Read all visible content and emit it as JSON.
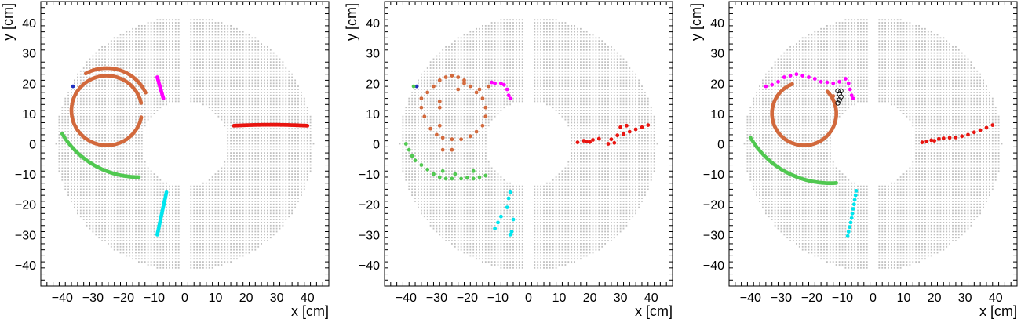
{
  "chart_data": [
    {
      "type": "scatter",
      "panel": "left",
      "xlabel": "x [cm]",
      "ylabel": "y [cm]",
      "xlim": [
        -47,
        47
      ],
      "ylim": [
        -47,
        47
      ],
      "xticks": [
        -40,
        -30,
        -20,
        -10,
        0,
        10,
        20,
        30,
        40
      ],
      "yticks": [
        -40,
        -30,
        -20,
        -10,
        0,
        10,
        20,
        30,
        40
      ],
      "tick_labels_x": [
        "−40",
        "−30",
        "−20",
        "−10",
        "0",
        "10",
        "20",
        "30",
        "40"
      ],
      "tick_labels_y": [
        "−40",
        "−30",
        "−20",
        "−10",
        "0",
        "10",
        "20",
        "30",
        "40"
      ],
      "grid": false,
      "background": {
        "description": "detector straw cells",
        "color": "#bfbfbf",
        "inner_radius": 14,
        "outer_radius": 42,
        "x_gap": 2
      },
      "series": [
        {
          "color": "#e8140f",
          "track": {
            "kind": "arc",
            "cx": 28,
            "cy": -220,
            "r": 226.3,
            "start_x": 16,
            "end_x": 40
          }
        },
        {
          "color": "#d2693c",
          "track": {
            "kind": "circle",
            "cx": -25.5,
            "cy": 11,
            "r": 11.5,
            "start_deg": 0,
            "end_deg": 360,
            "gap_deg": [
              350,
              10
            ]
          }
        },
        {
          "color": "#d2693c",
          "track": {
            "kind": "arc_deg",
            "cx": -25.5,
            "cy": 11,
            "r": 14,
            "start_deg": 25,
            "end_deg": 120
          }
        },
        {
          "color": "#50c850",
          "track": {
            "kind": "arc",
            "cx": -15,
            "cy": 18,
            "r": 29.0,
            "start_x": -40,
            "end_x": -15
          }
        },
        {
          "color": "#ff00ff",
          "track": {
            "kind": "line",
            "x1": -9,
            "y1": 22,
            "x2": -7,
            "y2": 15
          }
        },
        {
          "color": "#00e5ee",
          "track": {
            "kind": "line",
            "x1": -6,
            "y1": -16,
            "x2": -9,
            "y2": -30
          }
        },
        {
          "color": "#2030c0",
          "points": [
            [
              -36.5,
              19
            ]
          ]
        }
      ]
    },
    {
      "type": "scatter",
      "panel": "middle",
      "xlabel": "x [cm]",
      "ylabel": "y [cm]",
      "xlim": [
        -47,
        47
      ],
      "ylim": [
        -47,
        47
      ],
      "xticks": [
        -40,
        -30,
        -20,
        -10,
        0,
        10,
        20,
        30,
        40
      ],
      "yticks": [
        -40,
        -30,
        -20,
        -10,
        0,
        10,
        20,
        30,
        40
      ],
      "tick_labels_x": [
        "−40",
        "−30",
        "−20",
        "−10",
        "0",
        "10",
        "20",
        "30",
        "40"
      ],
      "tick_labels_y": [
        "−40",
        "−30",
        "−20",
        "−10",
        "0",
        "10",
        "20",
        "30",
        "40"
      ],
      "grid": false,
      "background": {
        "description": "detector straw cells",
        "color": "#bfbfbf",
        "inner_radius": 14,
        "outer_radius": 42,
        "x_gap": 2
      },
      "series": [
        {
          "color": "#e8140f",
          "points": [
            [
              16,
              0.5
            ],
            [
              18,
              1
            ],
            [
              19,
              0.8
            ],
            [
              21,
              1.3
            ],
            [
              23,
              1.7
            ],
            [
              27,
              1.5
            ],
            [
              29,
              2.8
            ],
            [
              31,
              3.2
            ],
            [
              33,
              4
            ],
            [
              35,
              4.8
            ],
            [
              37,
              5.5
            ],
            [
              39,
              6.2
            ],
            [
              20,
              0.6
            ],
            [
              26,
              0
            ],
            [
              28,
              0.3
            ],
            [
              30,
              5.5
            ],
            [
              32,
              6
            ]
          ]
        },
        {
          "color": "#d2693c",
          "points": [
            [
              -33,
              17
            ],
            [
              -31,
              19
            ],
            [
              -29,
              21
            ],
            [
              -27,
              22
            ],
            [
              -25,
              22.5
            ],
            [
              -23,
              22
            ],
            [
              -21,
              21
            ],
            [
              -19,
              19
            ],
            [
              -17,
              17
            ],
            [
              -15,
              15
            ],
            [
              -14,
              12
            ],
            [
              -14,
              9
            ],
            [
              -15,
              6
            ],
            [
              -17,
              4
            ],
            [
              -19,
              2.5
            ],
            [
              -22,
              1.5
            ],
            [
              -25,
              1.5
            ],
            [
              -28,
              2
            ],
            [
              -30,
              3
            ],
            [
              -32,
              5
            ],
            [
              -34,
              9
            ],
            [
              -35,
              12
            ],
            [
              -35,
              15
            ],
            [
              -29,
              12
            ],
            [
              -29,
              14
            ],
            [
              -29,
              6
            ],
            [
              -28,
              -2
            ],
            [
              -25,
              -2
            ],
            [
              -23,
              18
            ],
            [
              -21,
              20
            ],
            [
              -16,
              18
            ],
            [
              -13,
              19
            ]
          ]
        },
        {
          "color": "#50c850",
          "points": [
            [
              -40,
              0
            ],
            [
              -39,
              -2
            ],
            [
              -38,
              -4
            ],
            [
              -37,
              -5.5
            ],
            [
              -35,
              -7
            ],
            [
              -33,
              -8.5
            ],
            [
              -31,
              -10
            ],
            [
              -29,
              -11
            ],
            [
              -27,
              -11.5
            ],
            [
              -25,
              -11.5
            ],
            [
              -22,
              -11.5
            ],
            [
              -20,
              -11.2
            ],
            [
              -18,
              -11.5
            ],
            [
              -16,
              -11
            ],
            [
              -14,
              -10.5
            ],
            [
              -28,
              -9
            ],
            [
              -24,
              -10
            ],
            [
              -18,
              -9
            ]
          ]
        },
        {
          "color": "#ff00ff",
          "points": [
            [
              -9,
              20
            ],
            [
              -8,
              19.5
            ],
            [
              -7,
              18
            ],
            [
              -6.5,
              16
            ],
            [
              -6,
              15
            ],
            [
              -11,
              20
            ],
            [
              -12,
              20.3
            ]
          ]
        },
        {
          "color": "#00e5ee",
          "points": [
            [
              -6,
              -16
            ],
            [
              -6.5,
              -18
            ],
            [
              -7,
              -21
            ],
            [
              -9,
              -24
            ],
            [
              -10,
              -26
            ],
            [
              -11,
              -28
            ],
            [
              -5,
              -25
            ],
            [
              -5.5,
              -29
            ],
            [
              -6,
              -30
            ]
          ]
        },
        {
          "color": "#2030c0",
          "points": [
            [
              -36.5,
              19
            ]
          ]
        },
        {
          "color": "#50c850",
          "points": [
            [
              -37.5,
              19
            ]
          ]
        }
      ]
    },
    {
      "type": "scatter",
      "panel": "right",
      "xlabel": "x [cm]",
      "ylabel": "y [cm]",
      "xlim": [
        -47,
        47
      ],
      "ylim": [
        -47,
        47
      ],
      "xticks": [
        -40,
        -30,
        -20,
        -10,
        0,
        10,
        20,
        30,
        40
      ],
      "yticks": [
        -40,
        -30,
        -20,
        -10,
        0,
        10,
        20,
        30,
        40
      ],
      "tick_labels_x": [
        "−40",
        "−30",
        "−20",
        "−10",
        "0",
        "10",
        "20",
        "30",
        "40"
      ],
      "tick_labels_y": [
        "−40",
        "−30",
        "−20",
        "−10",
        "0",
        "10",
        "20",
        "30",
        "40"
      ],
      "grid": false,
      "background": {
        "description": "detector straw cells",
        "color": "#bfbfbf",
        "inner_radius": 14,
        "outer_radius": 42,
        "x_gap": 2
      },
      "series": [
        {
          "color": "#e8140f",
          "points": [
            [
              16,
              0.5
            ],
            [
              17.5,
              0.8
            ],
            [
              19,
              1.2
            ],
            [
              20,
              1
            ],
            [
              21.5,
              1.6
            ],
            [
              23,
              1.8
            ],
            [
              25,
              2
            ],
            [
              27,
              2.1
            ],
            [
              29,
              2.5
            ],
            [
              31,
              3
            ],
            [
              33,
              3.8
            ],
            [
              35,
              4.5
            ],
            [
              37,
              5.3
            ],
            [
              39,
              6.2
            ]
          ]
        },
        {
          "color": "#d2693c",
          "track": {
            "kind": "circle",
            "cx": -22.5,
            "cy": 10,
            "r": 10.5,
            "start_deg": 0,
            "end_deg": 360,
            "gap_deg": [
              45,
              110
            ]
          }
        },
        {
          "color": "#d2693c",
          "points": [
            [
              -13,
              14.5
            ],
            [
              -12.5,
              13
            ],
            [
              -13,
              15.8
            ]
          ]
        },
        {
          "color": "#50c850",
          "track": {
            "kind": "arc",
            "cx": -14,
            "cy": 17,
            "r": 30.0,
            "start_x": -40,
            "end_x": -12
          }
        },
        {
          "color": "#ff00ff",
          "points": [
            [
              -35,
              19
            ],
            [
              -33,
              19.5
            ],
            [
              -31,
              20.5
            ],
            [
              -29,
              22
            ],
            [
              -27,
              22.5
            ],
            [
              -25,
              23
            ],
            [
              -23,
              22.5
            ],
            [
              -21,
              22
            ],
            [
              -19,
              21.5
            ],
            [
              -17,
              20.5
            ],
            [
              -15,
              20.3
            ],
            [
              -13,
              20
            ],
            [
              -11,
              20.5
            ],
            [
              -9,
              21.5
            ],
            [
              -8,
              20
            ],
            [
              -7.5,
              18
            ],
            [
              -7,
              16
            ],
            [
              -6.5,
              15
            ]
          ]
        },
        {
          "color": "#00e5ee",
          "points": [
            [
              -5.5,
              -15.5
            ],
            [
              -5.7,
              -17
            ],
            [
              -6,
              -18.5
            ],
            [
              -6.2,
              -20
            ],
            [
              -6.5,
              -21.5
            ],
            [
              -6.8,
              -23
            ],
            [
              -7,
              -24.5
            ],
            [
              -7.3,
              -26
            ],
            [
              -7.6,
              -27.5
            ],
            [
              -8,
              -29
            ],
            [
              -8.3,
              -30.5
            ]
          ]
        },
        {
          "color": "#000000",
          "style": "open-circle",
          "points": [
            [
              -10.5,
              17.5
            ],
            [
              -11.5,
              17.5
            ],
            [
              -11,
              16.5
            ],
            [
              -10.5,
              15.5
            ],
            [
              -11,
              14.5
            ],
            [
              -11.5,
              13.5
            ]
          ]
        }
      ]
    }
  ]
}
